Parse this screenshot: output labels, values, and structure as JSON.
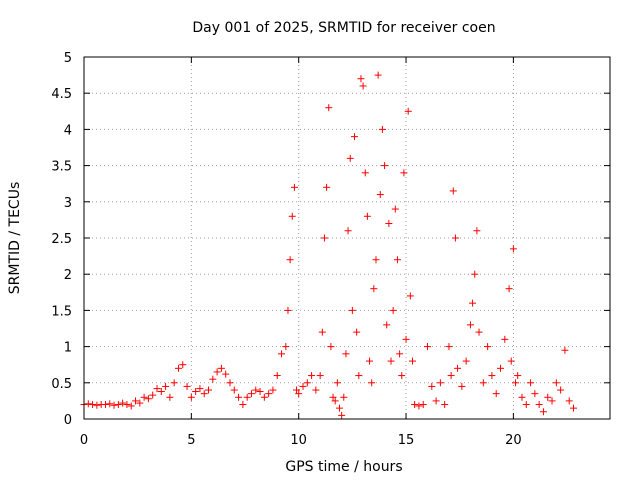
{
  "chart_data": {
    "type": "scatter",
    "title": "Day 001 of 2025, SRMTID for receiver coen",
    "xlabel": "GPS time / hours",
    "ylabel": "SRMTID / TECUs",
    "xlim": [
      0,
      24.5
    ],
    "ylim": [
      0,
      5
    ],
    "x_ticks": [
      0,
      5,
      10,
      15,
      20
    ],
    "x_tick_labels": [
      "0",
      "5",
      "10",
      "15",
      "20"
    ],
    "y_ticks": [
      0,
      0.5,
      1,
      1.5,
      2,
      2.5,
      3,
      3.5,
      4,
      4.5,
      5
    ],
    "y_tick_labels": [
      "0",
      "0.5",
      "1",
      "1.5",
      "2",
      "2.5",
      "3",
      "3.5",
      "4",
      "4.5",
      "5"
    ],
    "grid": true,
    "marker": "+",
    "color": "#ff0000",
    "series": [
      {
        "name": "SRMTID",
        "x": [
          0.0,
          0.2,
          0.4,
          0.6,
          0.8,
          1.0,
          1.2,
          1.4,
          1.6,
          1.8,
          2.0,
          2.2,
          2.4,
          2.6,
          2.8,
          3.0,
          3.2,
          3.4,
          3.6,
          3.8,
          4.0,
          4.2,
          4.4,
          4.6,
          4.8,
          5.0,
          5.2,
          5.4,
          5.6,
          5.8,
          6.0,
          6.2,
          6.4,
          6.6,
          6.8,
          7.0,
          7.2,
          7.4,
          7.6,
          7.8,
          8.0,
          8.2,
          8.4,
          8.6,
          8.8,
          9.0,
          9.2,
          9.4,
          9.5,
          9.6,
          9.7,
          9.8,
          9.9,
          10.0,
          10.2,
          10.4,
          10.6,
          10.8,
          11.0,
          11.1,
          11.2,
          11.3,
          11.4,
          11.5,
          11.6,
          11.7,
          11.8,
          11.9,
          12.0,
          12.1,
          12.2,
          12.3,
          12.4,
          12.5,
          12.6,
          12.7,
          12.8,
          12.9,
          13.0,
          13.1,
          13.2,
          13.3,
          13.4,
          13.5,
          13.6,
          13.7,
          13.8,
          13.9,
          14.0,
          14.1,
          14.2,
          14.3,
          14.4,
          14.5,
          14.6,
          14.7,
          14.8,
          14.9,
          15.0,
          15.1,
          15.2,
          15.3,
          15.4,
          15.6,
          15.8,
          16.0,
          16.2,
          16.4,
          16.6,
          16.8,
          17.0,
          17.1,
          17.2,
          17.3,
          17.4,
          17.6,
          17.8,
          18.0,
          18.1,
          18.2,
          18.3,
          18.4,
          18.6,
          18.8,
          19.0,
          19.2,
          19.4,
          19.6,
          19.8,
          19.9,
          20.0,
          20.1,
          20.2,
          20.4,
          20.6,
          20.8,
          21.0,
          21.2,
          21.4,
          21.6,
          21.8,
          22.0,
          22.2,
          22.4,
          22.6,
          22.8
        ],
        "y": [
          0.2,
          0.21,
          0.2,
          0.19,
          0.2,
          0.2,
          0.21,
          0.19,
          0.2,
          0.22,
          0.2,
          0.18,
          0.25,
          0.22,
          0.3,
          0.28,
          0.33,
          0.42,
          0.38,
          0.45,
          0.3,
          0.5,
          0.7,
          0.75,
          0.45,
          0.3,
          0.38,
          0.42,
          0.35,
          0.4,
          0.55,
          0.65,
          0.7,
          0.62,
          0.5,
          0.4,
          0.3,
          0.2,
          0.3,
          0.35,
          0.4,
          0.38,
          0.3,
          0.35,
          0.4,
          0.6,
          0.9,
          1.0,
          1.5,
          2.2,
          2.8,
          3.2,
          0.4,
          0.35,
          0.45,
          0.5,
          0.6,
          0.4,
          0.6,
          1.2,
          2.5,
          3.2,
          4.3,
          1.0,
          0.3,
          0.25,
          0.5,
          0.15,
          0.05,
          0.3,
          0.9,
          2.6,
          3.6,
          1.5,
          3.9,
          1.2,
          0.6,
          4.7,
          4.6,
          3.4,
          2.8,
          0.8,
          0.5,
          1.8,
          2.2,
          4.75,
          3.1,
          4.0,
          3.5,
          1.3,
          2.7,
          0.8,
          1.5,
          2.9,
          2.2,
          0.9,
          0.6,
          3.4,
          1.1,
          4.25,
          1.7,
          0.8,
          0.2,
          0.18,
          0.2,
          1.0,
          0.45,
          0.25,
          0.5,
          0.2,
          1.0,
          0.6,
          3.15,
          2.5,
          0.7,
          0.45,
          0.8,
          1.3,
          1.6,
          2.0,
          2.6,
          1.2,
          0.5,
          1.0,
          0.6,
          0.35,
          0.7,
          1.1,
          1.8,
          0.8,
          2.35,
          0.5,
          0.6,
          0.3,
          0.2,
          0.5,
          0.35,
          0.2,
          0.1,
          0.3,
          0.25,
          0.5,
          0.4,
          0.95,
          0.25,
          0.15
        ]
      }
    ]
  }
}
